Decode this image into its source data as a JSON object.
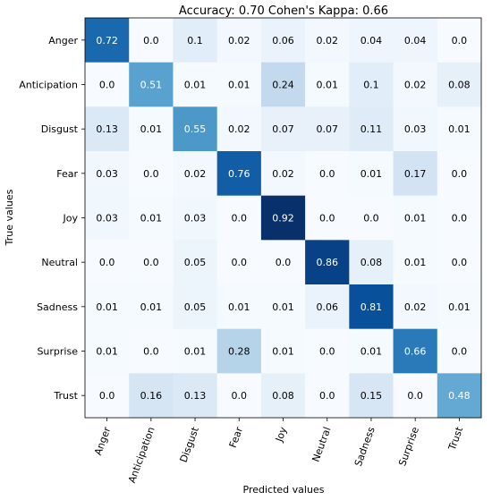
{
  "chart_data": {
    "type": "heatmap",
    "title": "Accuracy: 0.70    Cohen's Kappa: 0.66",
    "xlabel": "Predicted values",
    "ylabel": "True values",
    "x_categories": [
      "Anger",
      "Anticipation",
      "Disgust",
      "Fear",
      "Joy",
      "Neutral",
      "Sadness",
      "Surprise",
      "Trust"
    ],
    "y_categories": [
      "Anger",
      "Anticipation",
      "Disgust",
      "Fear",
      "Joy",
      "Neutral",
      "Sadness",
      "Surprise",
      "Trust"
    ],
    "values": [
      [
        0.72,
        0.0,
        0.1,
        0.02,
        0.06,
        0.02,
        0.04,
        0.04,
        0.0
      ],
      [
        0.0,
        0.51,
        0.01,
        0.01,
        0.24,
        0.01,
        0.1,
        0.02,
        0.08
      ],
      [
        0.13,
        0.01,
        0.55,
        0.02,
        0.07,
        0.07,
        0.11,
        0.03,
        0.01
      ],
      [
        0.03,
        0.0,
        0.02,
        0.76,
        0.02,
        0.0,
        0.01,
        0.17,
        0.0
      ],
      [
        0.03,
        0.01,
        0.03,
        0.0,
        0.92,
        0.0,
        0.0,
        0.01,
        0.0
      ],
      [
        0.0,
        0.0,
        0.05,
        0.0,
        0.0,
        0.86,
        0.08,
        0.01,
        0.0
      ],
      [
        0.01,
        0.01,
        0.05,
        0.01,
        0.01,
        0.06,
        0.81,
        0.02,
        0.01
      ],
      [
        0.01,
        0.0,
        0.01,
        0.28,
        0.01,
        0.0,
        0.01,
        0.66,
        0.0
      ],
      [
        0.0,
        0.16,
        0.13,
        0.0,
        0.08,
        0.0,
        0.15,
        0.0,
        0.48
      ]
    ],
    "value_range": [
      0,
      0.92
    ],
    "colormap": "Blues",
    "text_threshold": 0.46
  }
}
